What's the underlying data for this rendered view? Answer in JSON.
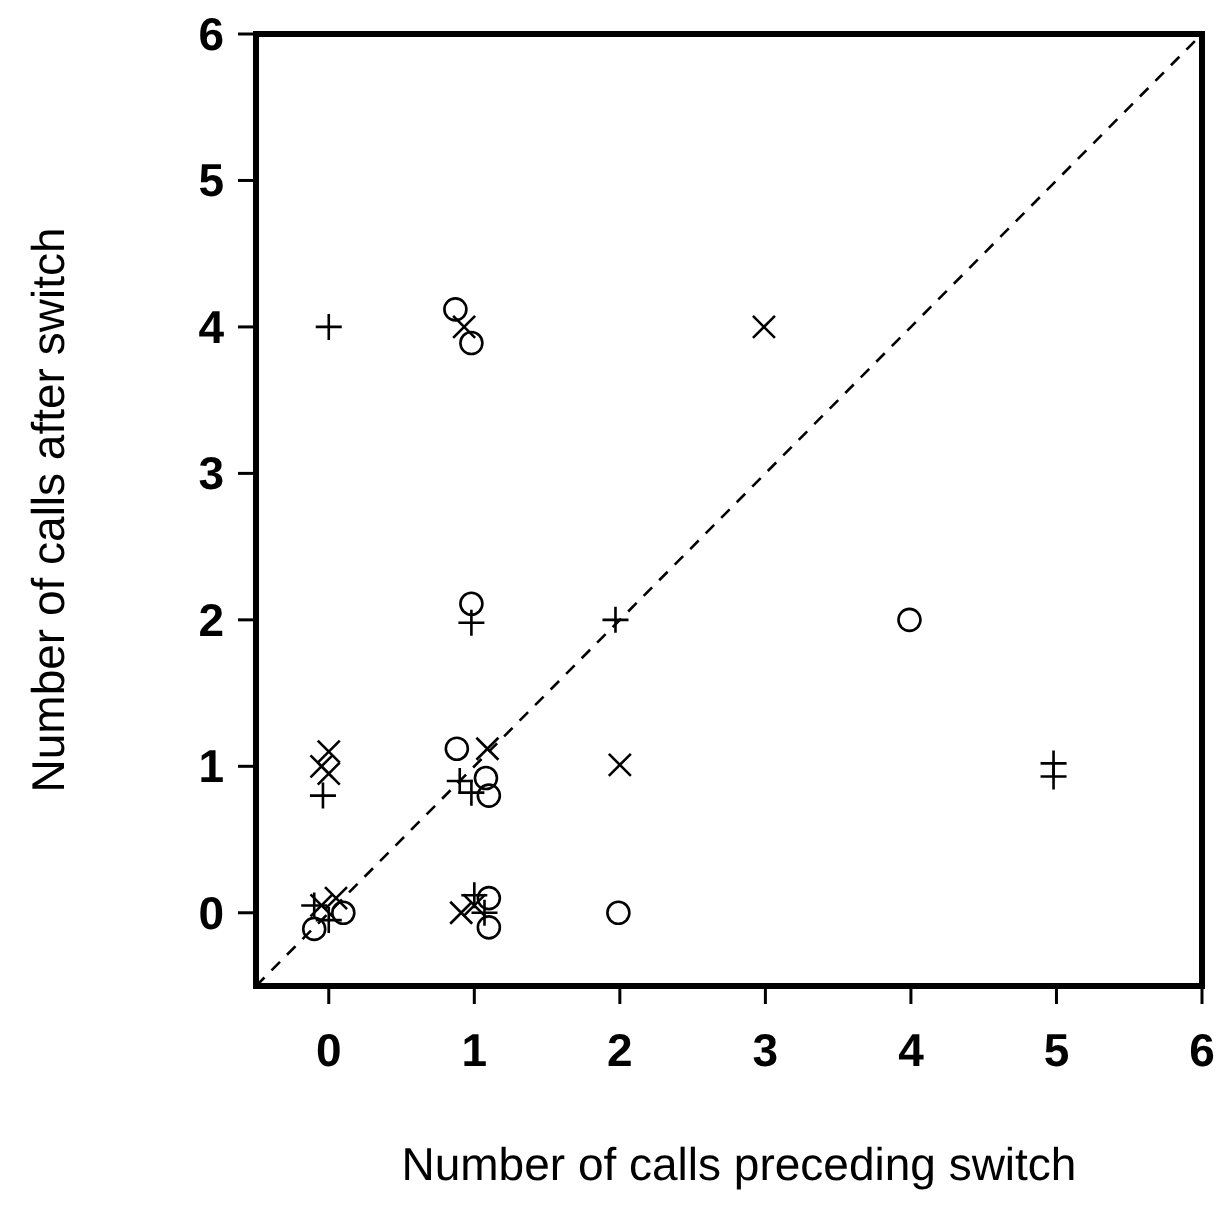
{
  "chart_data": {
    "type": "scatter",
    "xlabel": "Number of calls preceding switch",
    "ylabel": "Number of calls after switch",
    "xlim": [
      -0.5,
      6
    ],
    "ylim": [
      -0.5,
      6
    ],
    "xticks": [
      0,
      1,
      2,
      3,
      4,
      5,
      6
    ],
    "yticks": [
      0,
      1,
      2,
      3,
      4,
      5,
      6
    ],
    "grid": false,
    "series": [
      {
        "type": "line",
        "color": "#000000",
        "marker": "none",
        "line_style": "dashed",
        "x": [
          -0.5,
          6
        ],
        "values": [
          -0.5,
          6
        ]
      },
      {
        "color": "#000000",
        "marker": "circle",
        "x": [
          0.87,
          0.98,
          0.98,
          3.99,
          0.88,
          1.08,
          1.1,
          -0.1,
          0.1,
          1.1,
          1.1,
          1.99
        ],
        "values": [
          4.12,
          3.89,
          2.11,
          2.0,
          1.12,
          0.92,
          0.8,
          -0.11,
          0.0,
          0.1,
          -0.1,
          0.0
        ]
      },
      {
        "color": "#000000",
        "marker": "plus",
        "x": [
          0.0,
          0.98,
          1.97,
          4.98,
          4.98,
          -0.04,
          0.9,
          0.98,
          -0.1,
          0.0,
          1.0,
          1.07
        ],
        "values": [
          4.0,
          1.98,
          2.0,
          1.02,
          0.93,
          0.8,
          0.9,
          0.82,
          0.05,
          -0.05,
          0.12,
          0.0
        ]
      },
      {
        "color": "#000000",
        "marker": "cross",
        "x": [
          0.93,
          2.99,
          2.0,
          0.0,
          -0.05,
          0.0,
          1.09,
          -0.05,
          0.05,
          0.91,
          1.0
        ],
        "values": [
          4.0,
          4.0,
          1.01,
          1.1,
          1.0,
          0.95,
          1.12,
          0.05,
          0.1,
          0.0,
          0.05
        ]
      }
    ]
  }
}
